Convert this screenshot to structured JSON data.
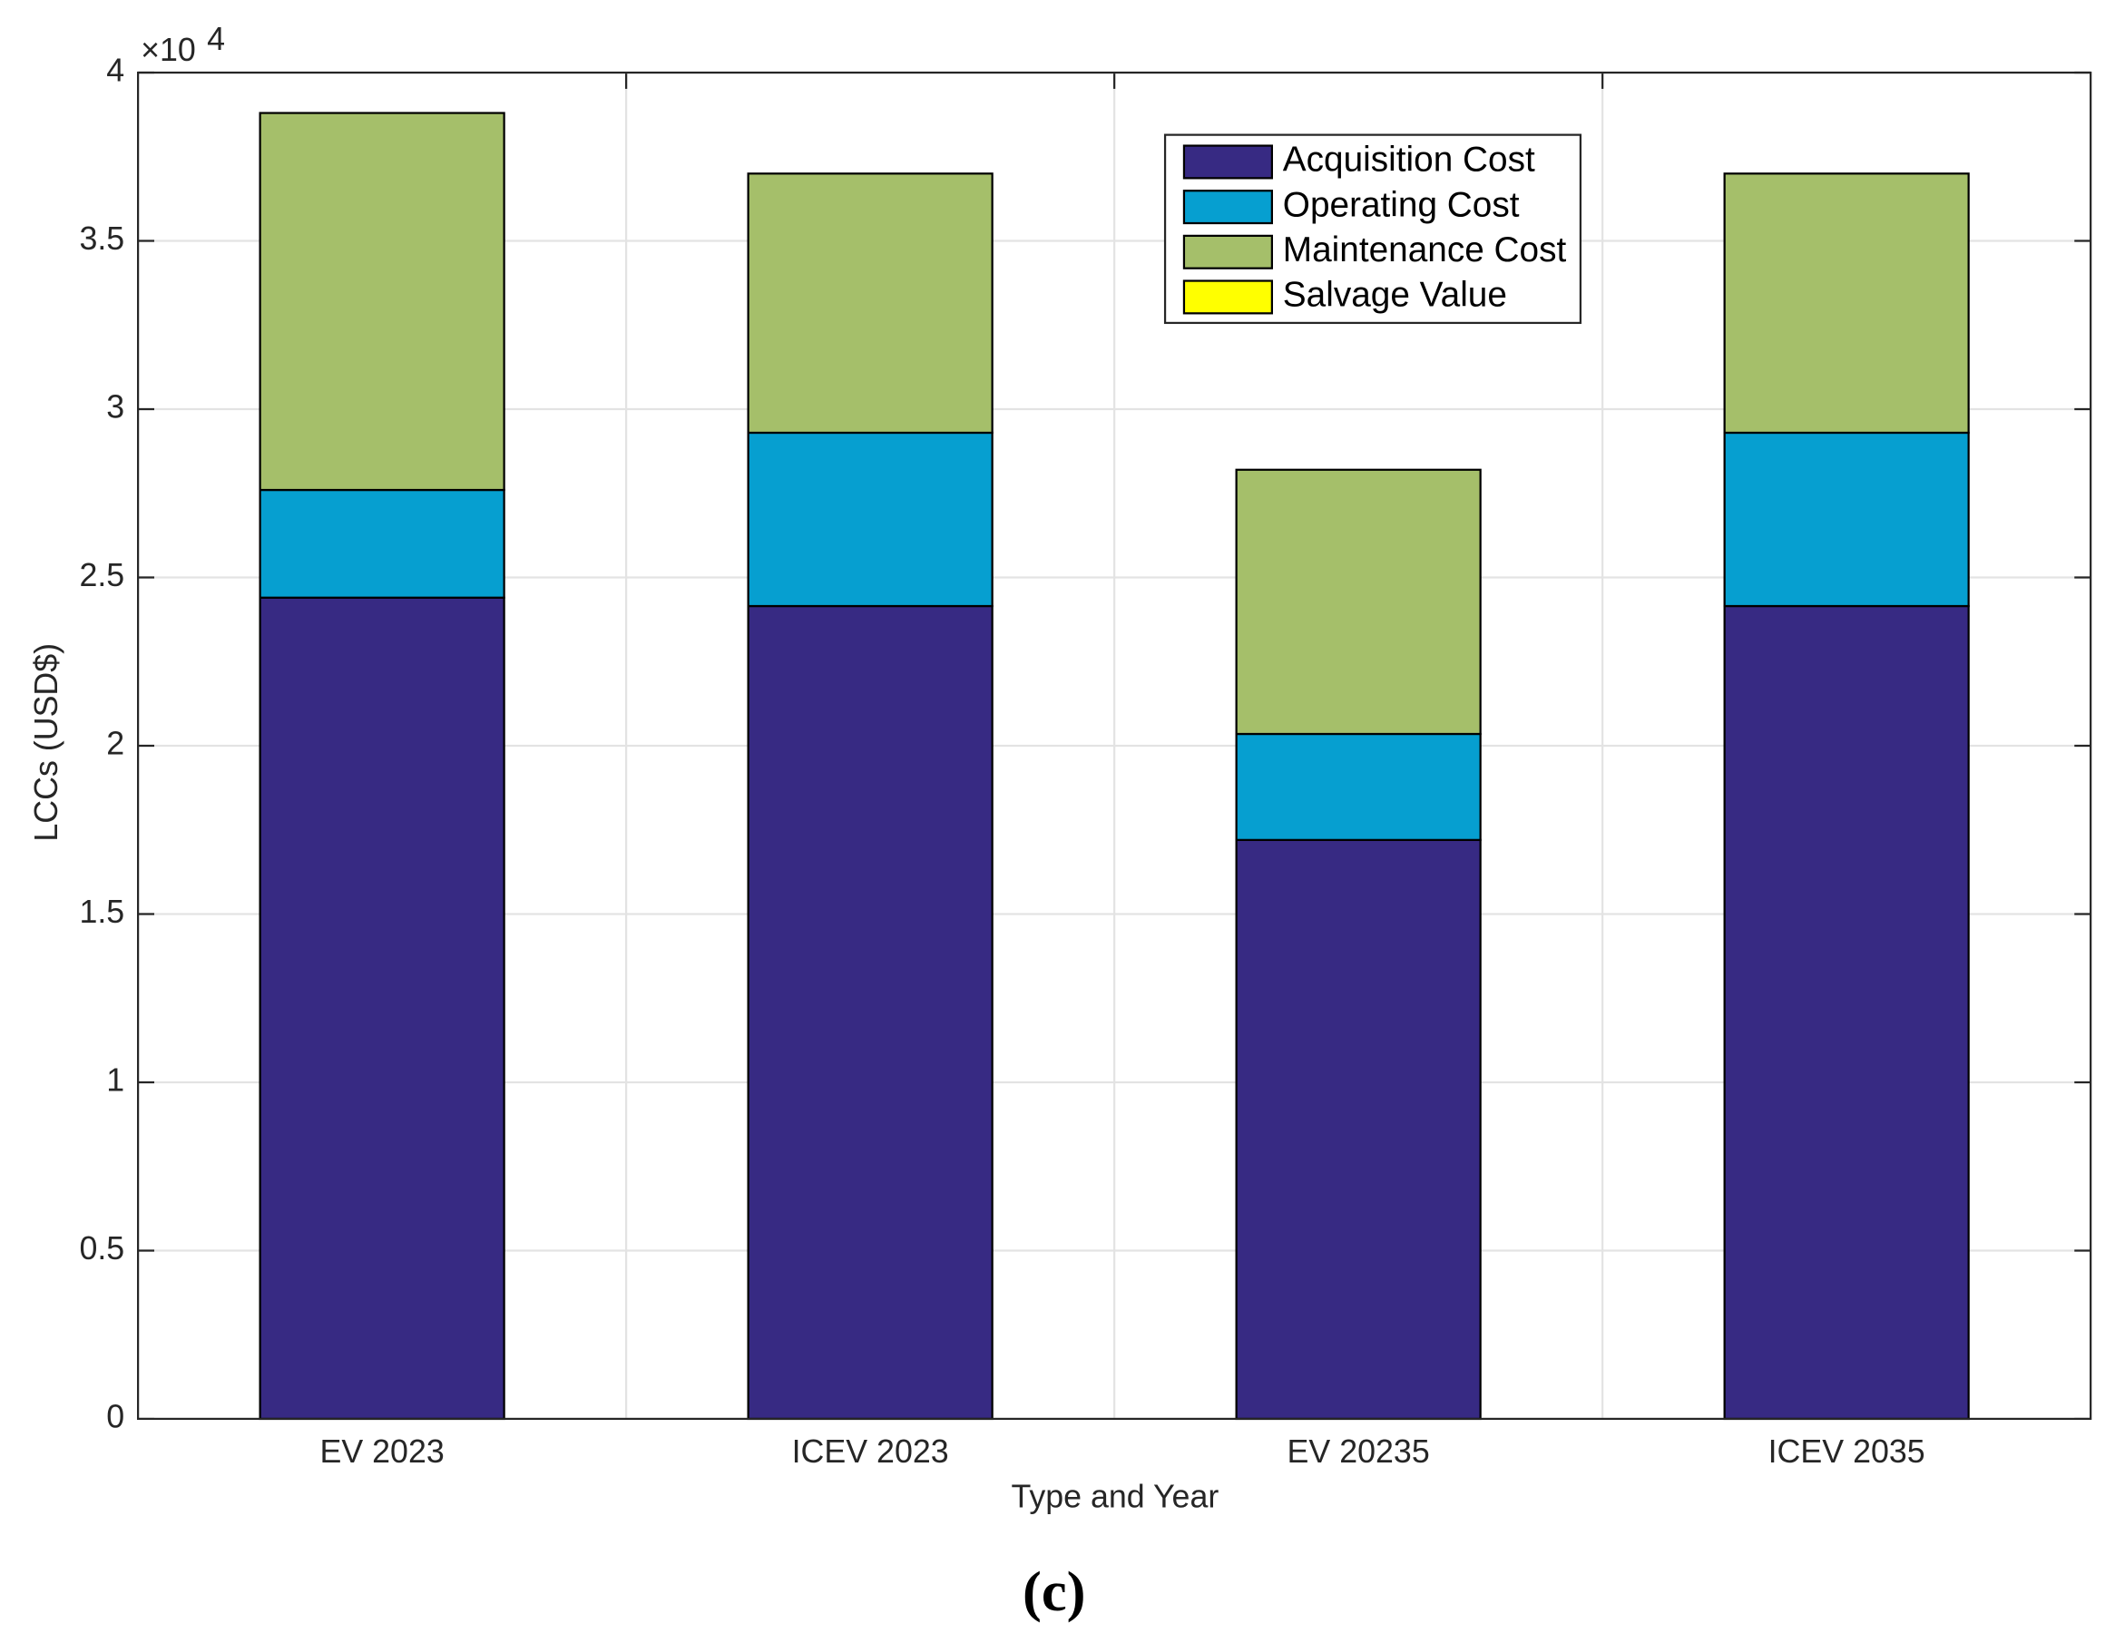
{
  "chart_data": {
    "type": "stacked_bar",
    "caption": "(c)",
    "y_multiplier": "×10",
    "y_exponent": "4",
    "xlabel": "Type and Year",
    "ylabel": "LCCs (USD$)",
    "categories": [
      "EV 2023",
      "ICEV 2023",
      "EV 20235",
      "ICEV 2035"
    ],
    "series": [
      {
        "name": "Acquisition Cost",
        "color": "#372a83",
        "values": [
          2.44,
          2.415,
          1.72,
          2.415
        ]
      },
      {
        "name": "Operating Cost",
        "color": "#069fd0",
        "values": [
          0.32,
          0.515,
          0.315,
          0.515
        ]
      },
      {
        "name": "Maintenance Cost",
        "color": "#a5bf6a",
        "values": [
          1.12,
          0.77,
          0.785,
          0.77
        ]
      },
      {
        "name": "Salvage Value",
        "color": "#ffff00",
        "values": [
          0,
          0,
          0,
          0
        ]
      }
    ],
    "ylim": [
      0,
      4
    ],
    "yticks": [
      0,
      0.5,
      1,
      1.5,
      2,
      2.5,
      3,
      3.5,
      4
    ],
    "grid": true,
    "legend": "top-center"
  }
}
